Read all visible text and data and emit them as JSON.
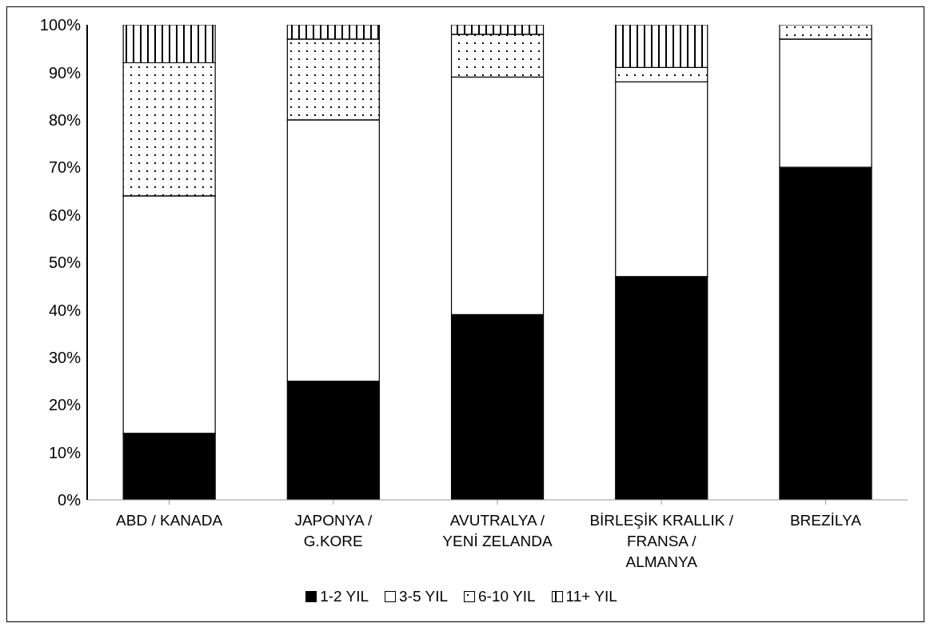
{
  "chart_data": {
    "type": "bar",
    "stacked": true,
    "categories": [
      "ABD / KANADA",
      "JAPONYA / G.KORE",
      "AVUTRALYA / YENİ ZELANDA",
      "BİRLEŞİK KRALLIK / FRANSA / ALMANYA",
      "BREZİLYA"
    ],
    "series": [
      {
        "name": "1-2 YIL",
        "color": "#000000",
        "values": [
          14,
          25,
          39,
          47,
          70
        ]
      },
      {
        "name": "3-5 YIL",
        "color": "#ffffff",
        "values": [
          50,
          55,
          50,
          41,
          27
        ]
      },
      {
        "name": "6-10 YIL",
        "color": "#000000",
        "values": [
          28,
          17,
          9,
          3,
          3
        ]
      },
      {
        "name": "11+ YIL",
        "color": "#000000",
        "values": [
          8,
          3,
          2,
          9,
          0
        ]
      }
    ],
    "ylim": [
      0,
      100
    ],
    "yticks": [
      {
        "value": 0,
        "label": "0%"
      },
      {
        "value": 10,
        "label": "10%"
      },
      {
        "value": 20,
        "label": "20%"
      },
      {
        "value": 30,
        "label": "30%"
      },
      {
        "value": 40,
        "label": "40%"
      },
      {
        "value": 50,
        "label": "50%"
      },
      {
        "value": 60,
        "label": "60%"
      },
      {
        "value": 70,
        "label": "70%"
      },
      {
        "value": 80,
        "label": "80%"
      },
      {
        "value": 90,
        "label": "90%"
      },
      {
        "value": 100,
        "label": "100%"
      }
    ],
    "grid": false,
    "legend": "bottom"
  }
}
